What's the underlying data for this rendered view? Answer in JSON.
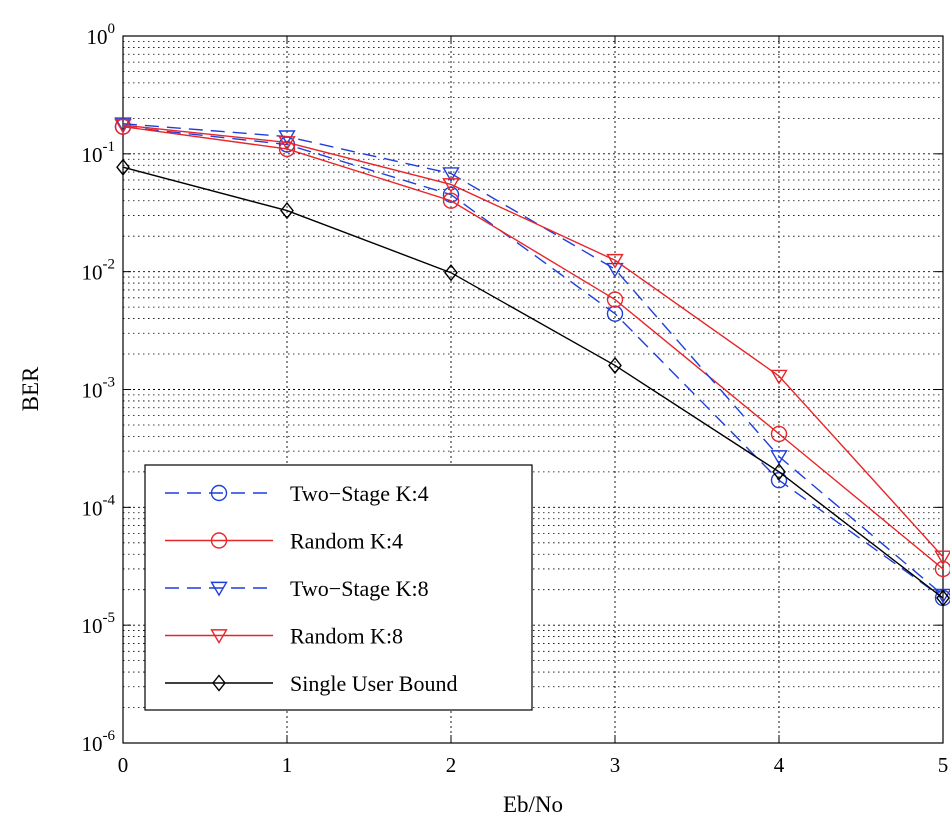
{
  "chart_data": {
    "type": "line",
    "xlabel": "Eb/No",
    "ylabel": "BER",
    "xlim": [
      0,
      5
    ],
    "ylim": [
      1e-06,
      1
    ],
    "yscale": "log",
    "grid": true,
    "legend_position": "bottom-left",
    "x_ticks": [
      "0",
      "1",
      "2",
      "3",
      "4",
      "5"
    ],
    "y_ticks": [
      {
        "base": "10",
        "exp": "0"
      },
      {
        "base": "10",
        "exp": "-1"
      },
      {
        "base": "10",
        "exp": "-2"
      },
      {
        "base": "10",
        "exp": "-3"
      },
      {
        "base": "10",
        "exp": "-4"
      },
      {
        "base": "10",
        "exp": "-5"
      },
      {
        "base": "10",
        "exp": "-6"
      }
    ],
    "x": [
      0,
      1,
      2,
      3,
      4,
      5
    ],
    "series": [
      {
        "name": "Two−Stage K:4",
        "color": "#1f3fdc",
        "dash": "dashed",
        "marker": "circle",
        "values": [
          0.17,
          0.12,
          0.045,
          0.0044,
          0.00017,
          1.7e-05
        ]
      },
      {
        "name": "Random K:4",
        "color": "#e8262a",
        "dash": "solid",
        "marker": "circle",
        "values": [
          0.17,
          0.11,
          0.04,
          0.0058,
          0.00042,
          3e-05
        ]
      },
      {
        "name": "Two−Stage K:8",
        "color": "#1f3fdc",
        "dash": "dashed",
        "marker": "triangle-down",
        "values": [
          0.18,
          0.14,
          0.068,
          0.0105,
          0.00027,
          1.8e-05
        ]
      },
      {
        "name": "Random K:8",
        "color": "#e8262a",
        "dash": "solid",
        "marker": "triangle-down",
        "values": [
          0.175,
          0.125,
          0.055,
          0.0125,
          0.0013,
          3.8e-05
        ]
      },
      {
        "name": "Single User Bound",
        "color": "#000000",
        "dash": "solid",
        "marker": "diamond",
        "values": [
          0.077,
          0.033,
          0.0098,
          0.0016,
          0.0002,
          1.7e-05
        ]
      }
    ]
  }
}
